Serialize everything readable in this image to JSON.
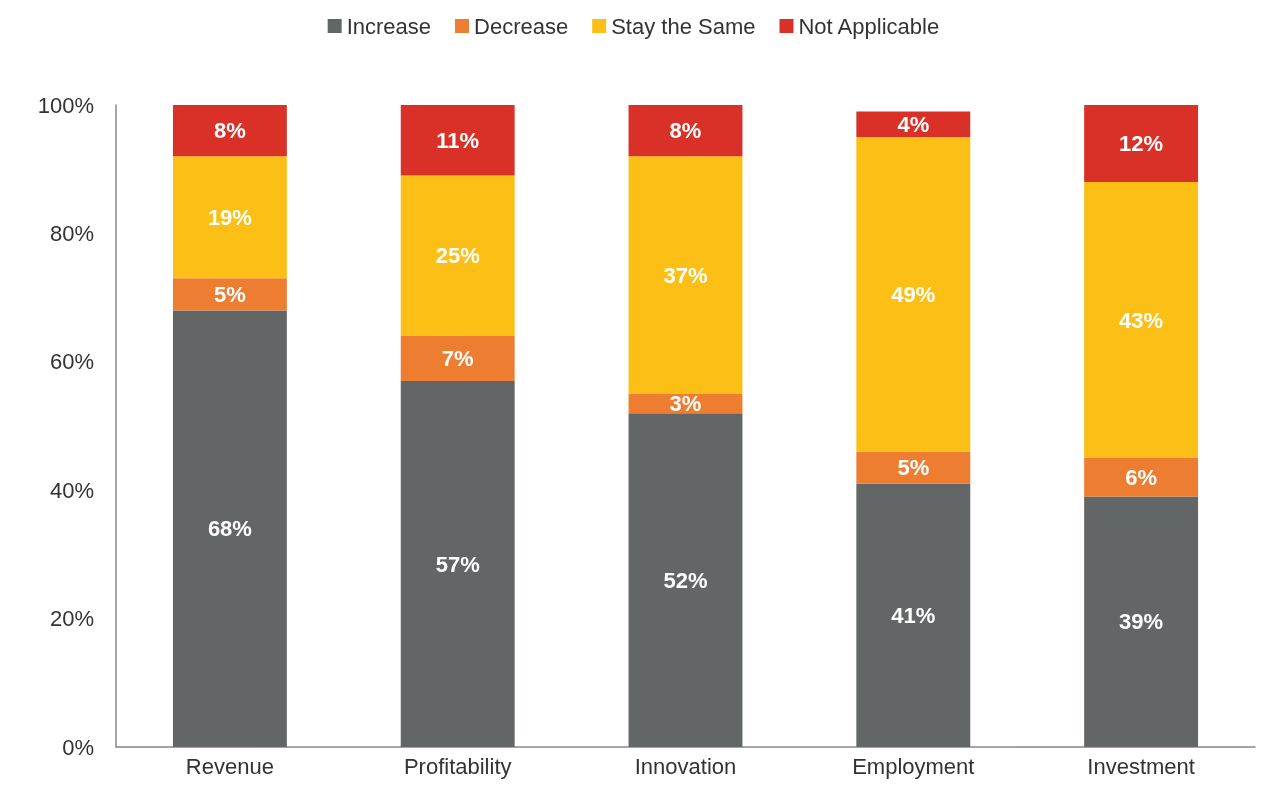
{
  "chart_data": {
    "type": "bar",
    "stacked": true,
    "categories": [
      "Revenue",
      "Profitability",
      "Innovation",
      "Employment",
      "Investment"
    ],
    "series": [
      {
        "name": "Increase",
        "color": "#636666",
        "values": [
          68,
          57,
          52,
          41,
          39
        ],
        "value_labels": [
          "68%",
          "57%",
          "52%",
          "41%",
          "39%"
        ]
      },
      {
        "name": "Decrease",
        "color": "#ed7d31",
        "values": [
          5,
          7,
          3,
          5,
          6
        ],
        "value_labels": [
          "5%",
          "7%",
          "3%",
          "5%",
          "6%"
        ]
      },
      {
        "name": "Stay the Same",
        "color": "#fbbf16",
        "values": [
          19,
          25,
          37,
          49,
          43
        ],
        "value_labels": [
          "19%",
          "25%",
          "37%",
          "49%",
          "43%"
        ]
      },
      {
        "name": "Not Applicable",
        "color": "#d93127",
        "values": [
          8,
          11,
          8,
          4,
          12
        ],
        "value_labels": [
          "8%",
          "11%",
          "8%",
          "4%",
          "12%"
        ]
      }
    ],
    "ylim": [
      0,
      100
    ],
    "yticks": [
      {
        "value": 0,
        "label": "0%"
      },
      {
        "value": 20,
        "label": "20%"
      },
      {
        "value": 40,
        "label": "40%"
      },
      {
        "value": 60,
        "label": "60%"
      },
      {
        "value": 80,
        "label": "80%"
      },
      {
        "value": 100,
        "label": "100%"
      }
    ],
    "grid": false,
    "legend": "top"
  }
}
